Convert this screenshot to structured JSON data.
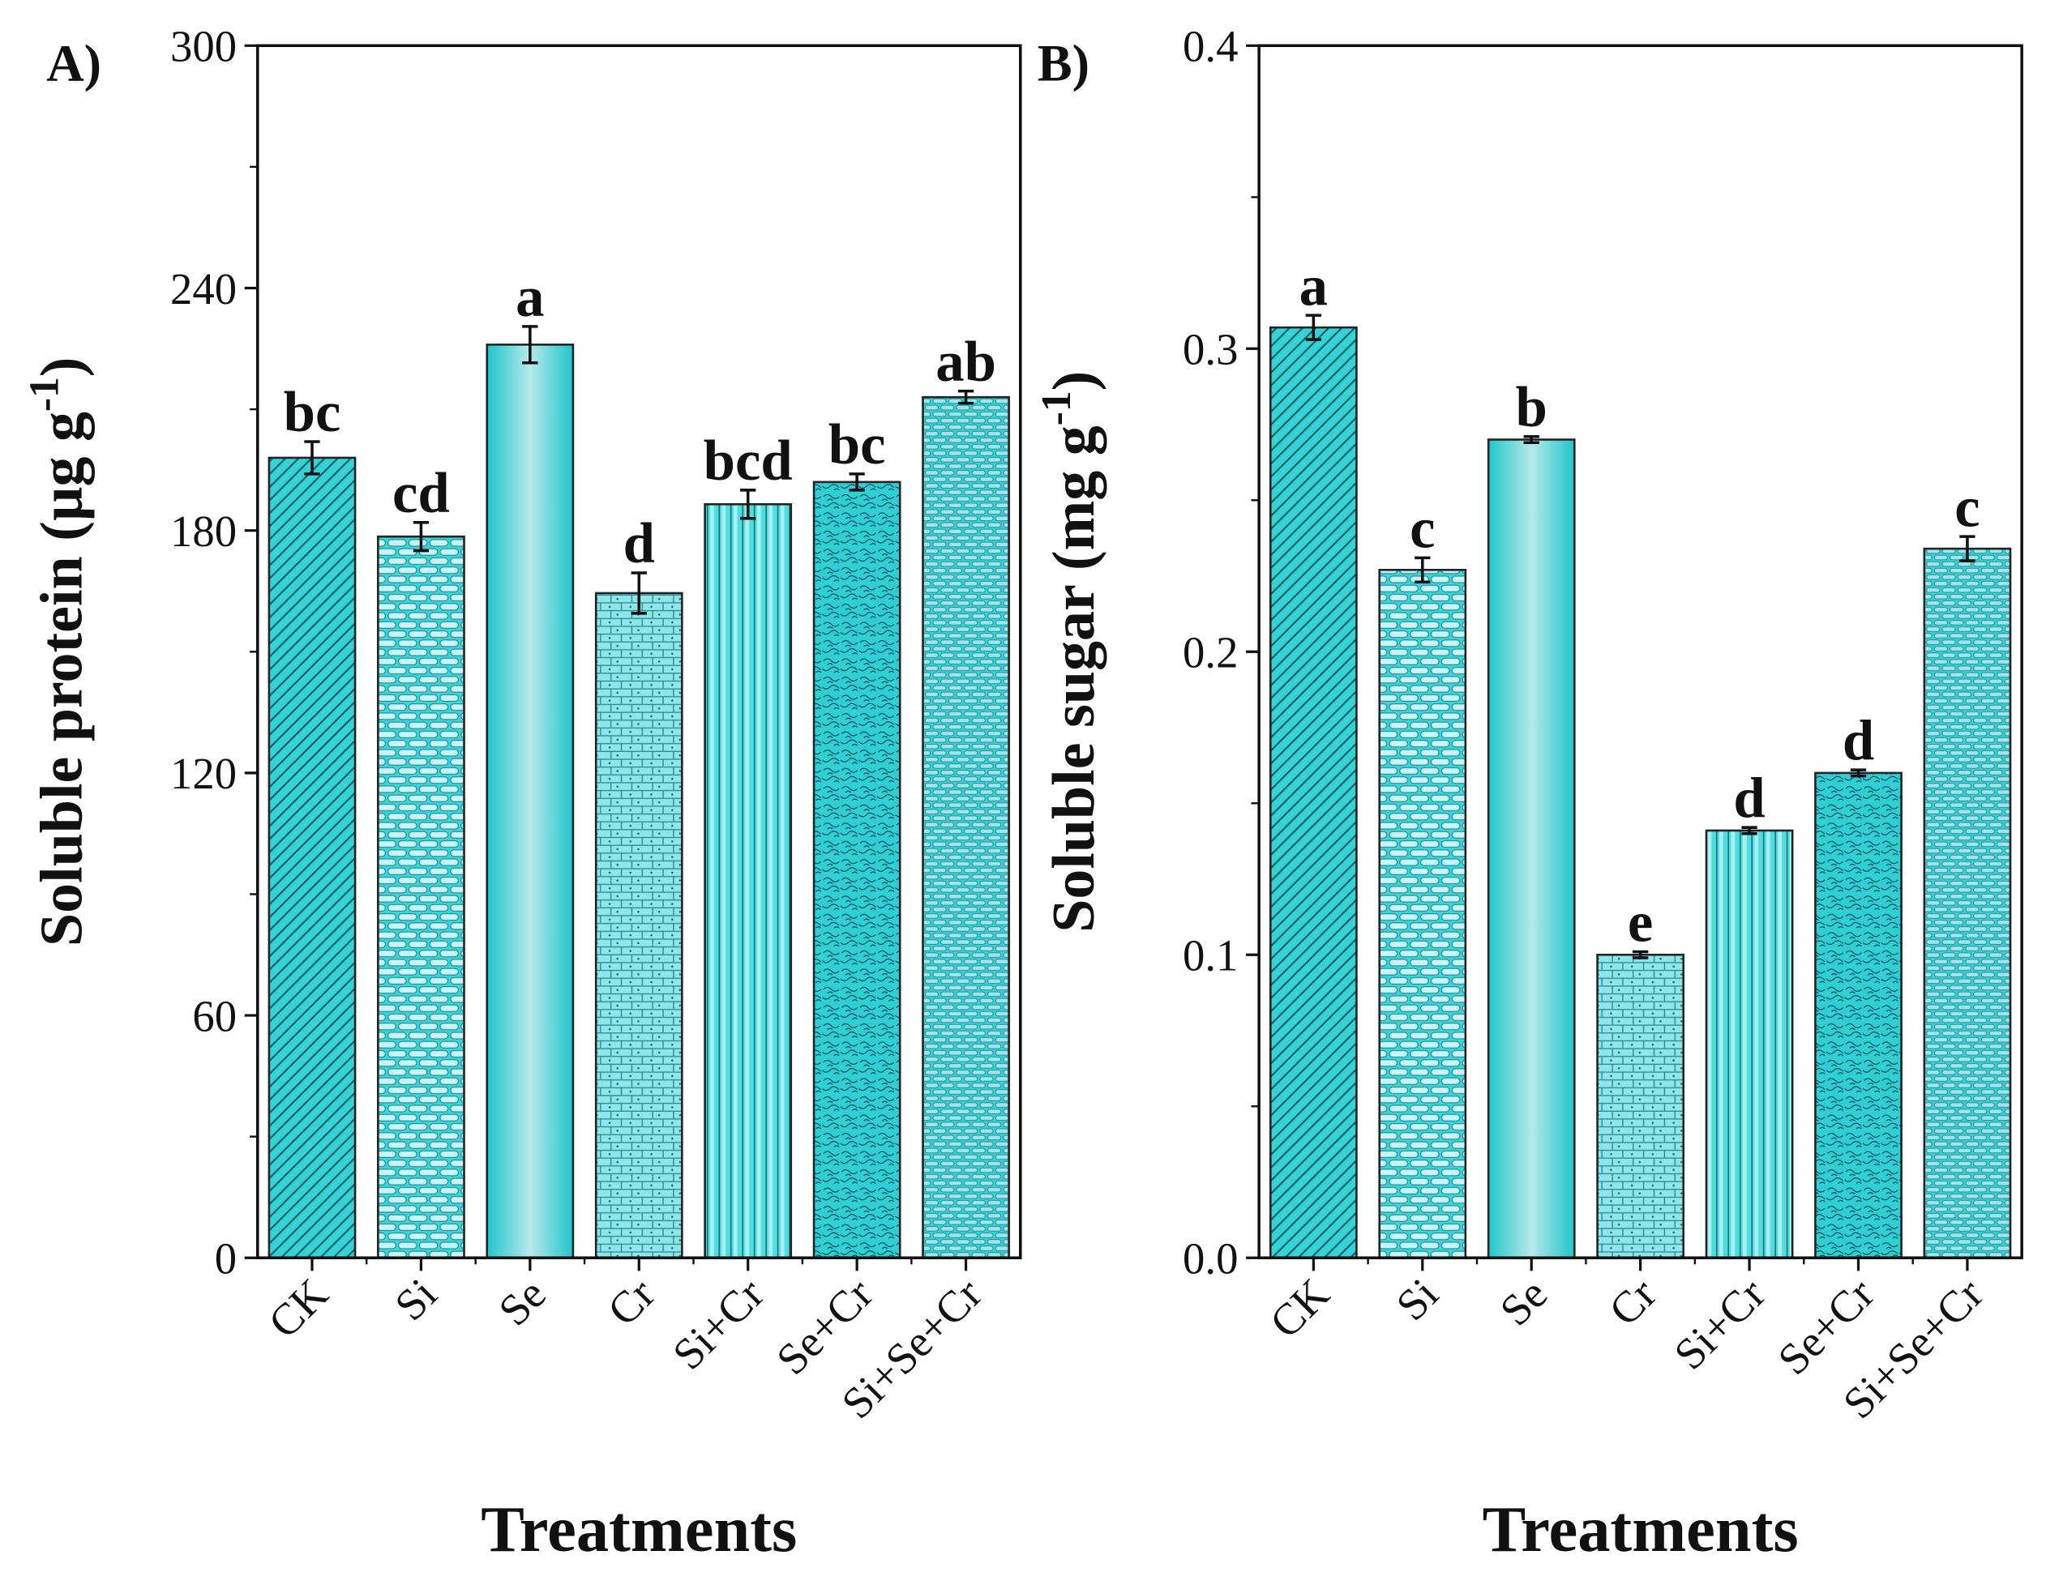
{
  "chart_data": [
    {
      "type": "bar",
      "panel_label": "A)",
      "xlabel": "Treatments",
      "ylabel": "Soluble protein (µg g",
      "ylabel_sup": "-1",
      "ylabel_close": ")",
      "categories": [
        "CK",
        "Si",
        "Se",
        "Cr",
        "Si+Cr",
        "Se+Cr",
        "Si+Se+Cr"
      ],
      "values": [
        198,
        178.5,
        226,
        164.5,
        186.5,
        192,
        213
      ],
      "errors": [
        4,
        3.5,
        4.5,
        5,
        3.5,
        2,
        1.5
      ],
      "letters": [
        "bc",
        "cd",
        "a",
        "d",
        "bcd",
        "bc",
        "ab"
      ],
      "ylim": [
        0,
        300
      ],
      "yticks": [
        "0",
        "60",
        "120",
        "180",
        "240",
        "300"
      ],
      "ytick_values": [
        0,
        60,
        120,
        180,
        240,
        300
      ],
      "minor_step": 30,
      "grid": false
    },
    {
      "type": "bar",
      "panel_label": "B)",
      "xlabel": "Treatments",
      "ylabel": "Soluble sugar (mg g",
      "ylabel_sup": "-1",
      "ylabel_close": ")",
      "categories": [
        "CK",
        "Si",
        "Se",
        "Cr",
        "Si+Cr",
        "Se+Cr",
        "Si+Se+Cr"
      ],
      "values": [
        0.307,
        0.227,
        0.27,
        0.1,
        0.141,
        0.16,
        0.234
      ],
      "errors": [
        0.004,
        0.004,
        0.001,
        0.001,
        0.001,
        0.001,
        0.004
      ],
      "letters": [
        "a",
        "c",
        "b",
        "e",
        "d",
        "d",
        "c"
      ],
      "ylim": [
        0,
        0.4
      ],
      "yticks": [
        "0.0",
        "0.1",
        "0.2",
        "0.3",
        "0.4"
      ],
      "ytick_values": [
        0,
        0.1,
        0.2,
        0.3,
        0.4
      ],
      "minor_step": 0.05,
      "grid": false
    }
  ],
  "colors": {
    "bar": "#33d4d8",
    "bar_light": "#b8f0f2",
    "pattern": "#1b6f77",
    "axis": "#111111"
  }
}
